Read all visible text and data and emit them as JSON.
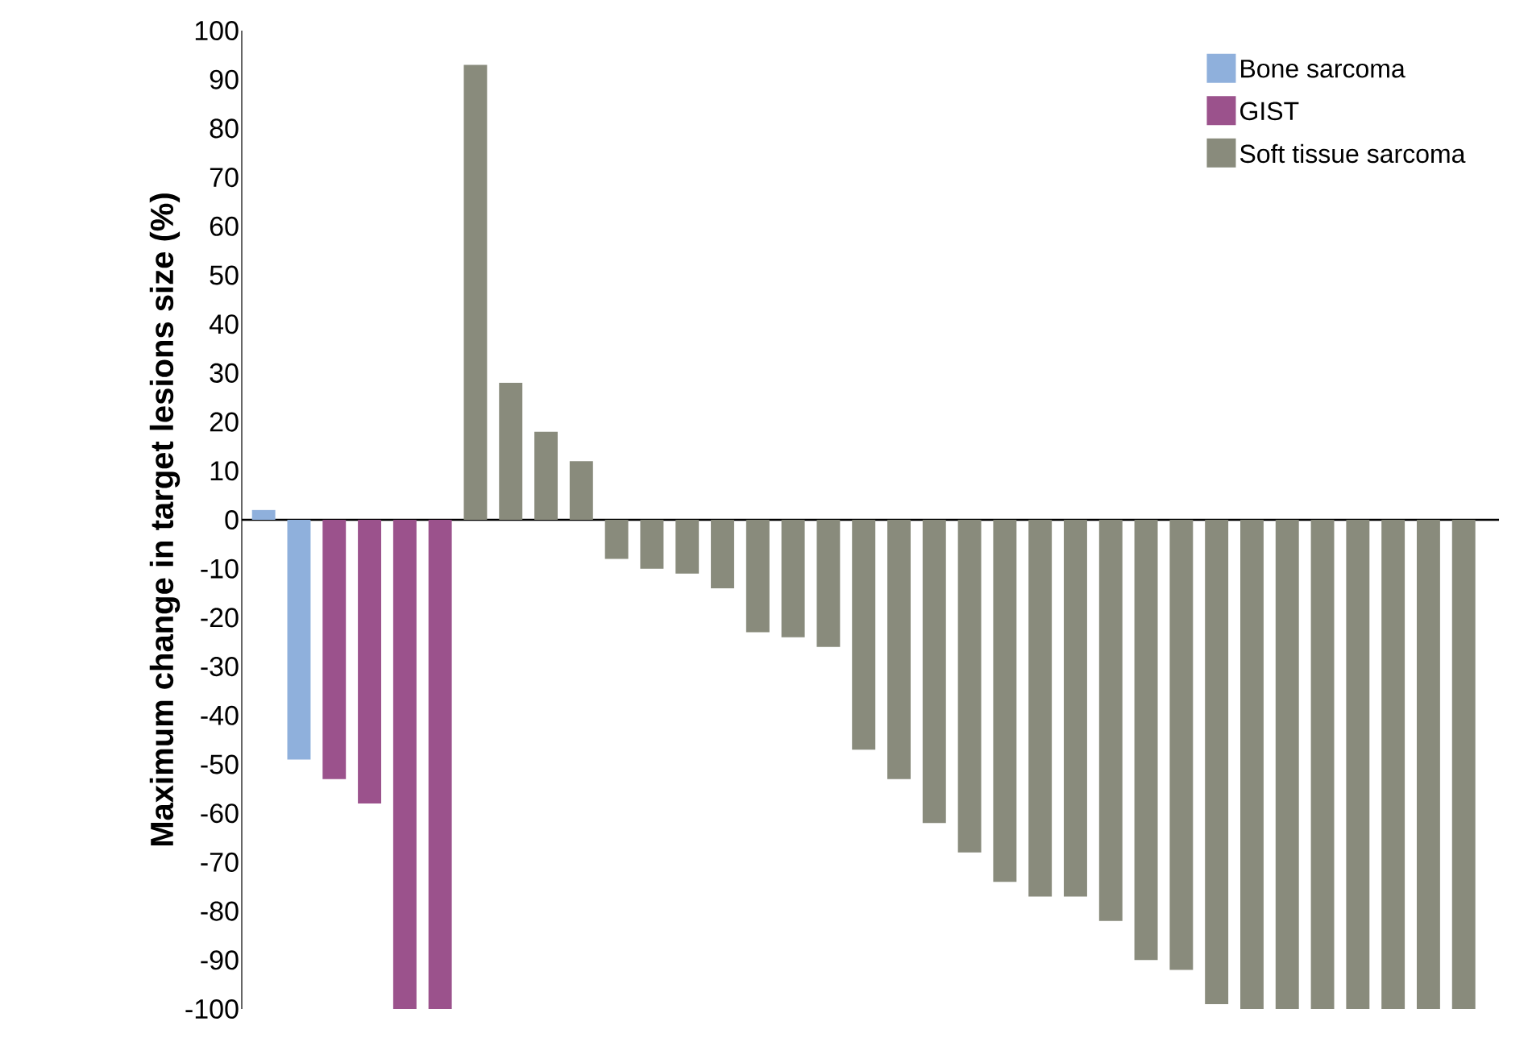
{
  "chart_data": {
    "type": "bar",
    "ylabel": "Maximum change in target lesions size (%)",
    "categories": [
      null,
      null,
      null,
      null,
      null,
      null,
      null,
      null,
      null,
      null,
      null,
      null,
      null,
      null,
      null,
      null,
      null,
      null,
      null,
      null,
      null,
      null,
      null,
      null,
      null,
      null,
      null,
      null,
      null,
      null,
      null,
      null,
      null,
      null,
      null
    ],
    "series": [
      {
        "name": "Bone sarcoma",
        "color": "#8fb0dc",
        "values": [
          2,
          -49,
          null,
          null,
          null,
          null,
          null,
          null,
          null,
          null,
          null,
          null,
          null,
          null,
          null,
          null,
          null,
          null,
          null,
          null,
          null,
          null,
          null,
          null,
          null,
          null,
          null,
          null,
          null,
          null,
          null,
          null,
          null,
          null,
          null
        ]
      },
      {
        "name": "GIST",
        "color": "#9b528c",
        "values": [
          null,
          null,
          -53,
          -58,
          -100,
          -100,
          null,
          null,
          null,
          null,
          null,
          null,
          null,
          null,
          null,
          null,
          null,
          null,
          null,
          null,
          null,
          null,
          null,
          null,
          null,
          null,
          null,
          null,
          null,
          null,
          null,
          null,
          null,
          null,
          null
        ]
      },
      {
        "name": "Soft tissue sarcoma",
        "color": "#898b7c",
        "values": [
          null,
          null,
          null,
          null,
          null,
          null,
          93,
          28,
          18,
          12,
          -8,
          -10,
          -11,
          -14,
          -23,
          -24,
          -26,
          -47,
          -53,
          -62,
          -68,
          -74,
          -77,
          -77,
          -82,
          -90,
          -92,
          -99,
          -100,
          -100,
          -100,
          -100,
          -100,
          -100,
          -100
        ]
      }
    ],
    "ylim": [
      -100,
      100
    ],
    "yticks": [
      -100,
      -90,
      -80,
      -70,
      -60,
      -50,
      -40,
      -30,
      -20,
      -10,
      0,
      10,
      20,
      30,
      40,
      50,
      60,
      70,
      80,
      90,
      100
    ],
    "legend": "top right"
  }
}
